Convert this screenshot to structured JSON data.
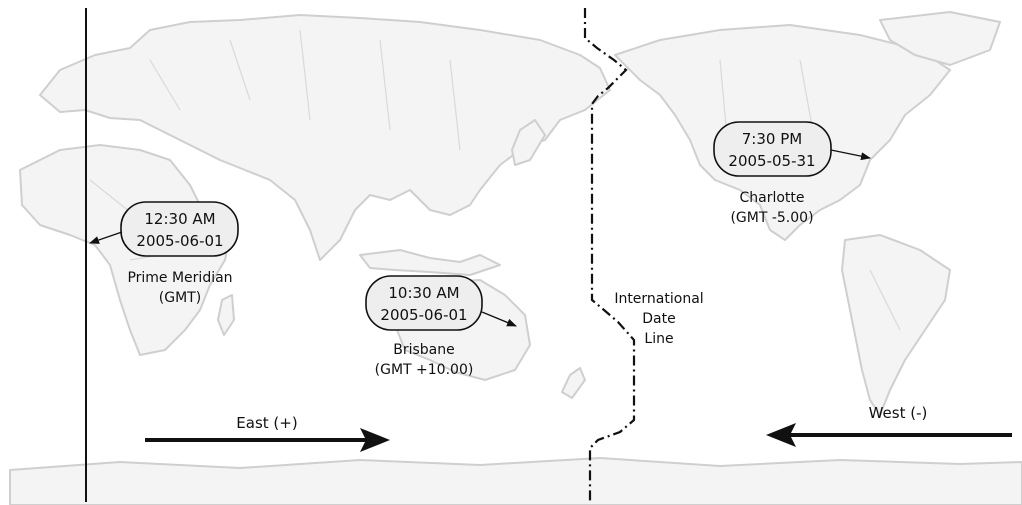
{
  "locations": [
    {
      "id": "prime-meridian",
      "time": "12:30 AM",
      "date": "2005-06-01",
      "name": "Prime Meridian",
      "offset": "(GMT)"
    },
    {
      "id": "brisbane",
      "time": "10:30 AM",
      "date": "2005-06-01",
      "name": "Brisbane",
      "offset": "(GMT +10.00)"
    },
    {
      "id": "charlotte",
      "time": "7:30 PM",
      "date": "2005-05-31",
      "name": "Charlotte",
      "offset": "(GMT  -5.00)"
    }
  ],
  "date_line": {
    "line1": "International",
    "line2": "Date",
    "line3": "Line"
  },
  "directions": {
    "east": "East (+)",
    "west": "West (-)"
  }
}
